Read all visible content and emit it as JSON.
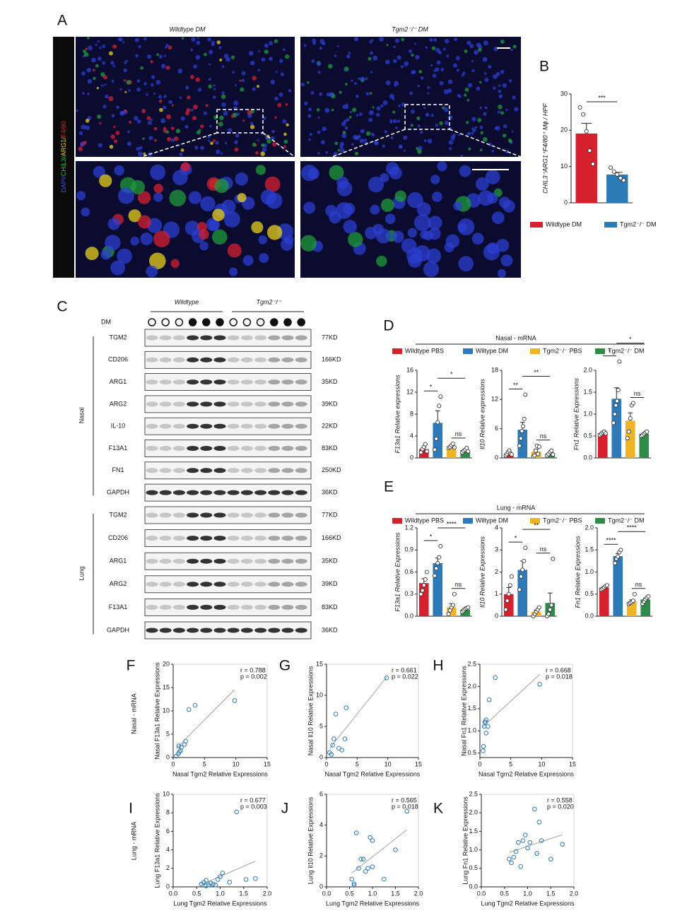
{
  "panel_labels": [
    "A",
    "B",
    "C",
    "D",
    "E",
    "F",
    "G",
    "H",
    "I",
    "J",
    "K"
  ],
  "microscopy": {
    "titles": [
      "Wildtype DM",
      "Tgm2⁻/⁻ DM"
    ],
    "stain_label": [
      {
        "text": "DAPI/",
        "color": "#3c4fe0"
      },
      {
        "text": "CHIL3/",
        "color": "#2fbf4a"
      },
      {
        "text": "ARG1/",
        "color": "#e8d01c"
      },
      {
        "text": "F4/80",
        "color": "#e02525"
      }
    ]
  },
  "legend_B": [
    {
      "name": "Wildtype DM",
      "color": "#d7202e"
    },
    {
      "name": "Tgm2⁻/⁻ DM",
      "color": "#2c7bb6"
    }
  ],
  "panel_D": {
    "title": "Nasal - mRNA",
    "legend": [
      {
        "name": "Wildtype PBS",
        "color": "#d7202e"
      },
      {
        "name": "Wiltype DM",
        "color": "#2e7ab8"
      },
      {
        "name": "Tgm2⁻/⁻ PBS",
        "color": "#f0b323"
      },
      {
        "name": "Tgm2⁻/⁻ DM",
        "color": "#2e8b4a"
      }
    ]
  },
  "panel_E": {
    "title": "Lung - mRNA",
    "legend": [
      {
        "name": "Wildtype PBS",
        "color": "#d7202e"
      },
      {
        "name": "Wiltype DM",
        "color": "#2e7ab8"
      },
      {
        "name": "Tgm2⁻/⁻ PBS",
        "color": "#f0b323"
      },
      {
        "name": "Tgm2⁻/⁻ DM",
        "color": "#2e8b4a"
      }
    ]
  },
  "scatter_rows": [
    "Nasal - mRNA",
    "Lung - mRNA"
  ],
  "western": {
    "groups": [
      "Wildtype",
      "Tgm2⁻/⁻"
    ],
    "dm_label": "DM",
    "dm": [
      false,
      false,
      false,
      true,
      true,
      true,
      false,
      false,
      false,
      true,
      true,
      true
    ],
    "tissues": [
      {
        "name": "Nasal",
        "rows": [
          {
            "protein": "TGM2",
            "size": "77KD"
          },
          {
            "protein": "CD206",
            "size": "166KD"
          },
          {
            "protein": "ARG1",
            "size": "35KD"
          },
          {
            "protein": "ARG2",
            "size": "39KD"
          },
          {
            "protein": "IL-10",
            "size": "22KD"
          },
          {
            "protein": "F13A1",
            "size": "83KD"
          },
          {
            "protein": "FN1",
            "size": "250KD"
          },
          {
            "protein": "GAPDH",
            "size": "36KD"
          }
        ]
      },
      {
        "name": "Lung",
        "rows": [
          {
            "protein": "TGM2",
            "size": "77KD"
          },
          {
            "protein": "CD206",
            "size": "166KD"
          },
          {
            "protein": "ARG1",
            "size": "35KD"
          },
          {
            "protein": "ARG2",
            "size": "39KD"
          },
          {
            "protein": "F13A1",
            "size": "83KD"
          },
          {
            "protein": "GAPDH",
            "size": "36KD"
          }
        ]
      }
    ]
  },
  "chart_data": [
    {
      "type": "bar",
      "ylabel": "CHIL3⁺ARG1⁺F4/80⁺ Mϕ / HPF",
      "categories": [
        null,
        null
      ],
      "colors": [
        "#d7202e",
        "#2c7bb6"
      ],
      "values": [
        19.1,
        7.8
      ],
      "errors": [
        2.8,
        0.6
      ],
      "points": [
        [
          26.3,
          24.4,
          19.7,
          14.4,
          10.7
        ],
        [
          9.7,
          8.6,
          7.8,
          6.8,
          6.2
        ]
      ],
      "ylim": [
        0,
        30
      ],
      "yticks": [
        0,
        10,
        20,
        30
      ],
      "annotations": [
        {
          "text": "***",
          "pair": [
            0,
            1
          ]
        }
      ]
    },
    {
      "type": "bar",
      "ylabel": "F13a1 Relative expressions",
      "categories": [
        null,
        null,
        null,
        null
      ],
      "colors": [
        "#d7202e",
        "#2e7ab8",
        "#f0b323",
        "#2e8b4a"
      ],
      "values": [
        1.6,
        6.4,
        2.1,
        1.4
      ],
      "errors": [
        0.3,
        2.2,
        0.2,
        0.2
      ],
      "points": [
        [
          1.0,
          1.6,
          2.0,
          2.5,
          1.2
        ],
        [
          1.5,
          3.5,
          6.5,
          9.5,
          11.2
        ],
        [
          1.8,
          2.0,
          2.3,
          2.6,
          1.9
        ],
        [
          1.0,
          1.3,
          1.5,
          1.8,
          1.2
        ]
      ],
      "ylim": [
        0,
        16
      ],
      "yticks": [
        0,
        4,
        8,
        12,
        16
      ],
      "annotations": [
        {
          "text": "*",
          "pair": [
            0,
            1
          ]
        },
        {
          "text": "ns",
          "pair": [
            2,
            3
          ]
        },
        {
          "text": "*",
          "pair": [
            1,
            3
          ]
        }
      ]
    },
    {
      "type": "bar",
      "ylabel": "Il10 Relative expressions",
      "categories": [
        null,
        null,
        null,
        null
      ],
      "colors": [
        "#d7202e",
        "#2e7ab8",
        "#f0b323",
        "#2e8b4a"
      ],
      "values": [
        0.9,
        5.8,
        1.3,
        0.9
      ],
      "errors": [
        0.15,
        1.5,
        0.5,
        0.2
      ],
      "points": [
        [
          0.5,
          0.8,
          1.2,
          1.5,
          0.9,
          0.7
        ],
        [
          2.5,
          4.0,
          5.5,
          6.5,
          8.0,
          13.0
        ],
        [
          0.3,
          0.5,
          1.5,
          2.5,
          0.8,
          2.3
        ],
        [
          0.5,
          0.8,
          1.2,
          1.5,
          0.7
        ]
      ],
      "ylim": [
        0,
        18
      ],
      "yticks": [
        0,
        6,
        12,
        18
      ],
      "annotations": [
        {
          "text": "**",
          "pair": [
            0,
            1
          ]
        },
        {
          "text": "ns",
          "pair": [
            2,
            3
          ]
        },
        {
          "text": "**",
          "pair": [
            1,
            3
          ]
        }
      ]
    },
    {
      "type": "bar",
      "ylabel": "Fn1 Relative Expressions",
      "categories": [
        null,
        null,
        null,
        null
      ],
      "colors": [
        "#d7202e",
        "#2e7ab8",
        "#f0b323",
        "#2e8b4a"
      ],
      "values": [
        0.56,
        1.35,
        0.85,
        0.55
      ],
      "errors": [
        0.02,
        0.25,
        0.18,
        0.02
      ],
      "points": [
        [
          0.52,
          0.55,
          0.58,
          0.6,
          0.56
        ],
        [
          0.8,
          1.0,
          1.2,
          1.3,
          1.55,
          2.2
        ],
        [
          0.45,
          0.6,
          0.9,
          1.2,
          1.25
        ],
        [
          0.5,
          0.52,
          0.55,
          0.58,
          0.6
        ]
      ],
      "ylim": [
        0,
        2
      ],
      "yticks": [
        {
          "value": 0,
          "label": "0.0"
        },
        0.5,
        {
          "value": 1,
          "label": "1.0"
        },
        1.5,
        {
          "value": 2,
          "label": "2.0"
        }
      ],
      "annotations": [
        {
          "text": "*",
          "pair": [
            0,
            1
          ]
        },
        {
          "text": "ns",
          "pair": [
            2,
            3
          ]
        },
        {
          "text": "*",
          "pair": [
            1,
            3
          ]
        }
      ]
    },
    {
      "type": "bar",
      "ylabel": "F13a1 Relative Expressions",
      "categories": [
        null,
        null,
        null,
        null
      ],
      "colors": [
        "#d7202e",
        "#2e7ab8",
        "#f0b323",
        "#2e8b4a"
      ],
      "values": [
        0.45,
        0.72,
        0.12,
        0.09
      ],
      "errors": [
        0.06,
        0.07,
        0.05,
        0.01
      ],
      "points": [
        [
          0.3,
          0.35,
          0.42,
          0.5,
          0.6
        ],
        [
          0.55,
          0.65,
          0.72,
          0.8,
          0.95
        ],
        [
          0.03,
          0.08,
          0.12,
          0.15,
          0.3
        ],
        [
          0.06,
          0.08,
          0.1,
          0.11,
          0.12
        ]
      ],
      "ylim": [
        0,
        1.2
      ],
      "yticks": [
        {
          "value": 0,
          "label": "0.0"
        },
        0.3,
        0.6,
        0.9,
        1.2
      ],
      "annotations": [
        {
          "text": "*",
          "pair": [
            0,
            1
          ]
        },
        {
          "text": "ns",
          "pair": [
            2,
            3
          ]
        },
        {
          "text": "****",
          "pair": [
            1,
            3
          ]
        }
      ]
    },
    {
      "type": "bar",
      "ylabel": "Il10 Relative Expressions",
      "categories": [
        null,
        null,
        null,
        null
      ],
      "colors": [
        "#d7202e",
        "#2e7ab8",
        "#f0b323",
        "#2e8b4a"
      ],
      "values": [
        1.0,
        2.1,
        0.2,
        0.6
      ],
      "errors": [
        0.3,
        0.4,
        0.08,
        0.45
      ],
      "points": [
        [
          0.3,
          0.7,
          1.0,
          1.4,
          1.8
        ],
        [
          1.2,
          1.8,
          2.1,
          2.5,
          3.1
        ],
        [
          0.0,
          0.1,
          0.2,
          0.3,
          0.4
        ],
        [
          0.0,
          0.1,
          0.3,
          0.5,
          2.6
        ]
      ],
      "ylim": [
        0,
        4
      ],
      "yticks": [
        0,
        1,
        2,
        3,
        4
      ],
      "annotations": [
        {
          "text": "*",
          "pair": [
            0,
            1
          ]
        },
        {
          "text": "ns",
          "pair": [
            2,
            3
          ]
        },
        {
          "text": "**",
          "pair": [
            1,
            3
          ]
        }
      ]
    },
    {
      "type": "bar",
      "ylabel": "Fn1 Relative Expressions",
      "categories": [
        null,
        null,
        null,
        null
      ],
      "colors": [
        "#d7202e",
        "#2e7ab8",
        "#f0b323",
        "#2e8b4a"
      ],
      "values": [
        0.65,
        1.36,
        0.33,
        0.38
      ],
      "errors": [
        0.02,
        0.06,
        0.04,
        0.03
      ],
      "points": [
        [
          0.6,
          0.62,
          0.65,
          0.68,
          0.7
        ],
        [
          1.2,
          1.3,
          1.35,
          1.45,
          1.5
        ],
        [
          0.28,
          0.3,
          0.32,
          0.35,
          0.5
        ],
        [
          0.28,
          0.33,
          0.38,
          0.42,
          0.45
        ]
      ],
      "ylim": [
        0,
        2
      ],
      "yticks": [
        {
          "value": 0,
          "label": "0.0"
        },
        0.5,
        {
          "value": 1,
          "label": "1.0"
        },
        1.5,
        {
          "value": 2,
          "label": "2.0"
        }
      ],
      "annotations": [
        {
          "text": "****",
          "pair": [
            0,
            1
          ]
        },
        {
          "text": "ns",
          "pair": [
            2,
            3
          ]
        },
        {
          "text": "****",
          "pair": [
            1,
            3
          ]
        }
      ]
    },
    {
      "type": "scatter",
      "color": "#2e7ab8",
      "xlabel": "Nasal Tgm2 Relative Expressions",
      "ylabel": "Nasal F13a1 Relative Expressions",
      "r": "r = 0.788",
      "p": "p = 0.002",
      "x": [
        0.5,
        0.8,
        1.0,
        1.2,
        1.3,
        0.9,
        1.8,
        2.0,
        2.5,
        3.5,
        9.8
      ],
      "values": [
        0.3,
        0.8,
        1.2,
        1.5,
        2.2,
        2.5,
        2.8,
        3.5,
        10.3,
        11.2,
        12.2
      ],
      "xlim": [
        0,
        15
      ],
      "xticks": [
        0,
        5,
        10,
        15
      ],
      "ylim": [
        0,
        20
      ],
      "yticks": [
        0,
        5,
        10,
        15,
        20
      ]
    },
    {
      "type": "scatter",
      "color": "#2e7ab8",
      "xlabel": "Nasal Tgm2 Relative Expressions",
      "ylabel": "Nasal Il10 Relative Expressions",
      "r": "r = 0.661",
      "p": "p = 0.022",
      "x": [
        0.5,
        0.8,
        1.0,
        1.2,
        1.5,
        2.0,
        2.5,
        3.0,
        3.2,
        9.8
      ],
      "values": [
        0.8,
        0.5,
        2,
        3,
        7,
        1.5,
        1.2,
        3,
        8,
        12.8
      ],
      "xlim": [
        0,
        15
      ],
      "xticks": [
        0,
        5,
        10,
        15
      ],
      "ylim": [
        0,
        15
      ],
      "yticks": [
        0,
        5,
        10,
        15
      ]
    },
    {
      "type": "scatter",
      "color": "#2e7ab8",
      "xlabel": "Nasal Tgm2 Relative Expressions",
      "ylabel": "Nasal Fn1 Relative Expressions",
      "r": "r = 0.668",
      "p": "p = 0.018",
      "x": [
        0.5,
        0.6,
        0.7,
        0.8,
        1.0,
        1.3,
        1.0,
        0.9,
        1.5,
        2.5,
        9.7
      ],
      "values": [
        0.55,
        0.65,
        1.1,
        1.2,
        1.25,
        1.1,
        0.95,
        1.2,
        1.7,
        2.2,
        2.05
      ],
      "xlim": [
        0,
        15
      ],
      "xticks": [
        0,
        5,
        10,
        15
      ],
      "ylim": [
        0.4,
        2.5
      ],
      "yticks": [
        0.5,
        {
          "value": 1,
          "label": "1.0"
        },
        1.5,
        {
          "value": 2,
          "label": "2.0"
        },
        2.5
      ]
    },
    {
      "type": "scatter",
      "color": "#2e7ab8",
      "xlabel": "Lung Tgm2 Relative Expressions",
      "ylabel": "Lung F13a1 Relative Expressions",
      "r": "r = 0.677",
      "p": "p = 0.003",
      "x": [
        0.6,
        0.65,
        0.7,
        0.75,
        0.8,
        0.85,
        0.9,
        0.95,
        1.0,
        1.05,
        1.2,
        1.35,
        1.55,
        1.75,
        0.7
      ],
      "values": [
        0.3,
        0.5,
        0.7,
        0.2,
        0.4,
        0.3,
        0.2,
        0.8,
        1.1,
        1.5,
        0.5,
        8.1,
        0.8,
        0.9,
        0.1
      ],
      "xlim": [
        0,
        2
      ],
      "xticks": [
        {
          "value": 0,
          "label": "0.0"
        },
        0.5,
        {
          "value": 1,
          "label": "1.0"
        },
        1.5,
        {
          "value": 2,
          "label": "2.0"
        }
      ],
      "ylim": [
        0,
        10
      ],
      "yticks": [
        0,
        2,
        4,
        6,
        8,
        10
      ]
    },
    {
      "type": "scatter",
      "color": "#2e7ab8",
      "xlabel": "Lung Tgm2 Relative Expressions",
      "ylabel": "Lung Il10 Relative Expressions",
      "r": "r = 0.565",
      "p": "p = 0.018",
      "x": [
        0.55,
        0.6,
        0.65,
        0.7,
        0.75,
        0.8,
        0.85,
        0.9,
        0.95,
        1.0,
        1.0,
        1.25,
        1.5,
        1.75,
        0.6
      ],
      "values": [
        0.5,
        0.2,
        3.5,
        1.2,
        1.8,
        1.8,
        1.0,
        1.2,
        3.2,
        3.0,
        1.3,
        0.5,
        2.4,
        4.9,
        0.1
      ],
      "xlim": [
        0,
        2
      ],
      "xticks": [
        {
          "value": 0,
          "label": "0.0"
        },
        0.5,
        {
          "value": 1,
          "label": "1.0"
        },
        1.5,
        {
          "value": 2,
          "label": "2.0"
        }
      ],
      "ylim": [
        0,
        6
      ],
      "yticks": [
        0,
        2,
        4,
        6
      ]
    },
    {
      "type": "scatter",
      "color": "#2e7ab8",
      "xlabel": "Lung Tgm2 Relative Expressions",
      "ylabel": "Lung Fn1 Relative Expressions",
      "r": "r = 0.558",
      "p": "p = 0.020",
      "x": [
        0.6,
        0.65,
        0.7,
        0.75,
        0.8,
        0.85,
        0.9,
        0.95,
        1.0,
        1.05,
        1.15,
        1.2,
        1.25,
        1.3,
        1.5,
        1.75
      ],
      "values": [
        0.75,
        0.65,
        0.8,
        0.95,
        1.2,
        0.55,
        1.25,
        1.4,
        1.05,
        1.2,
        2.1,
        0.9,
        1.75,
        1.25,
        0.75,
        1.15
      ],
      "xlim": [
        0,
        2
      ],
      "xticks": [
        {
          "value": 0,
          "label": "0.0"
        },
        0.5,
        {
          "value": 1,
          "label": "1.0"
        },
        1.5,
        {
          "value": 2,
          "label": "2.0"
        }
      ],
      "ylim": [
        0,
        2.5
      ],
      "yticks": [
        {
          "value": 0,
          "label": "0.0"
        },
        0.5,
        {
          "value": 1,
          "label": "1.0"
        },
        1.5,
        {
          "value": 2,
          "label": "2.0"
        },
        2.5
      ]
    }
  ]
}
